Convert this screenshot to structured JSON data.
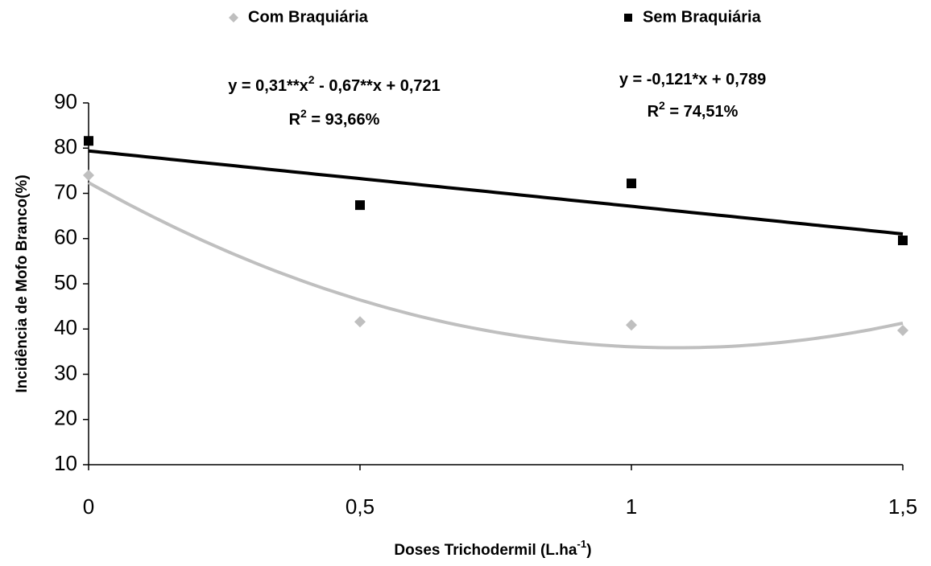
{
  "chart_data": {
    "type": "scatter",
    "x_label": [
      "Doses Trichodermil (L.ha",
      "-1",
      ")"
    ],
    "y_label": "Incidência de Mofo Branco(%)",
    "x": [
      0,
      0.5,
      1,
      1.5
    ],
    "xlim": [
      0,
      1.5
    ],
    "xticks": [
      {
        "value": 0,
        "label": "0"
      },
      {
        "value": 0.5,
        "label": "0,5"
      },
      {
        "value": 1,
        "label": "1"
      },
      {
        "value": 1.5,
        "label": "1,5"
      }
    ],
    "ylim": [
      10,
      90
    ],
    "yticks": [
      10,
      20,
      30,
      40,
      50,
      60,
      70,
      80,
      90
    ],
    "grid": false,
    "legend": "top",
    "series": [
      {
        "name": "Com Braquiária",
        "color": "#bfbfbf",
        "marker": "diamond",
        "trendline": "poly2",
        "values": [
          74.0,
          41.6,
          40.9,
          39.7
        ],
        "equation": [
          "y = 0,31**x",
          "2",
          " - 0,67**x + 0,721"
        ],
        "r2": [
          "R",
          "2",
          " = 93,66%"
        ]
      },
      {
        "name": "Sem Braquiária",
        "color": "#000000",
        "marker": "square",
        "trendline": "linear",
        "values": [
          81.6,
          67.4,
          72.2,
          59.6
        ],
        "equation": [
          "y = -0,121*x + 0,789"
        ],
        "r2": [
          "R",
          "2",
          " = 74,51%"
        ]
      }
    ]
  }
}
